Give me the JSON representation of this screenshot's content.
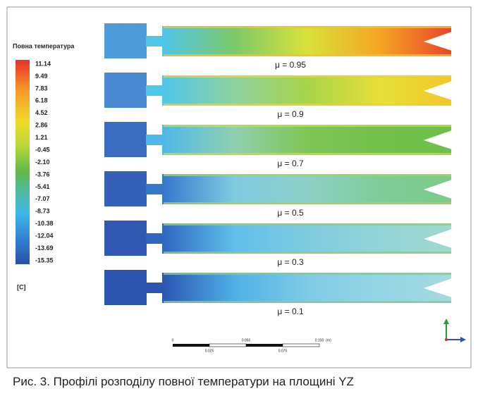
{
  "legend": {
    "title": "Повна температура",
    "ticks": [
      "11.14",
      "9.49",
      "7.83",
      "6.18",
      "4.52",
      "2.86",
      "1.21",
      "-0.45",
      "-2.10",
      "-3.76",
      "-5.41",
      "-7.07",
      "-8.73",
      "-10.38",
      "-12.04",
      "-13.69",
      "-15.35"
    ],
    "unit": "[C]"
  },
  "panels": [
    {
      "label": "μ = 0.95"
    },
    {
      "label": "μ = 0.9"
    },
    {
      "label": "μ = 0.7"
    },
    {
      "label": "μ = 0.5"
    },
    {
      "label": "μ = 0.3"
    },
    {
      "label": "μ = 0.1"
    }
  ],
  "scale_bar": {
    "top_labels": [
      "0",
      "0.050",
      "0.100",
      "(m)"
    ],
    "bottom_labels": [
      "0.025",
      "0.075"
    ]
  },
  "caption": "Рис. 3. Профілі розподілу повної температури на площині YZ"
}
